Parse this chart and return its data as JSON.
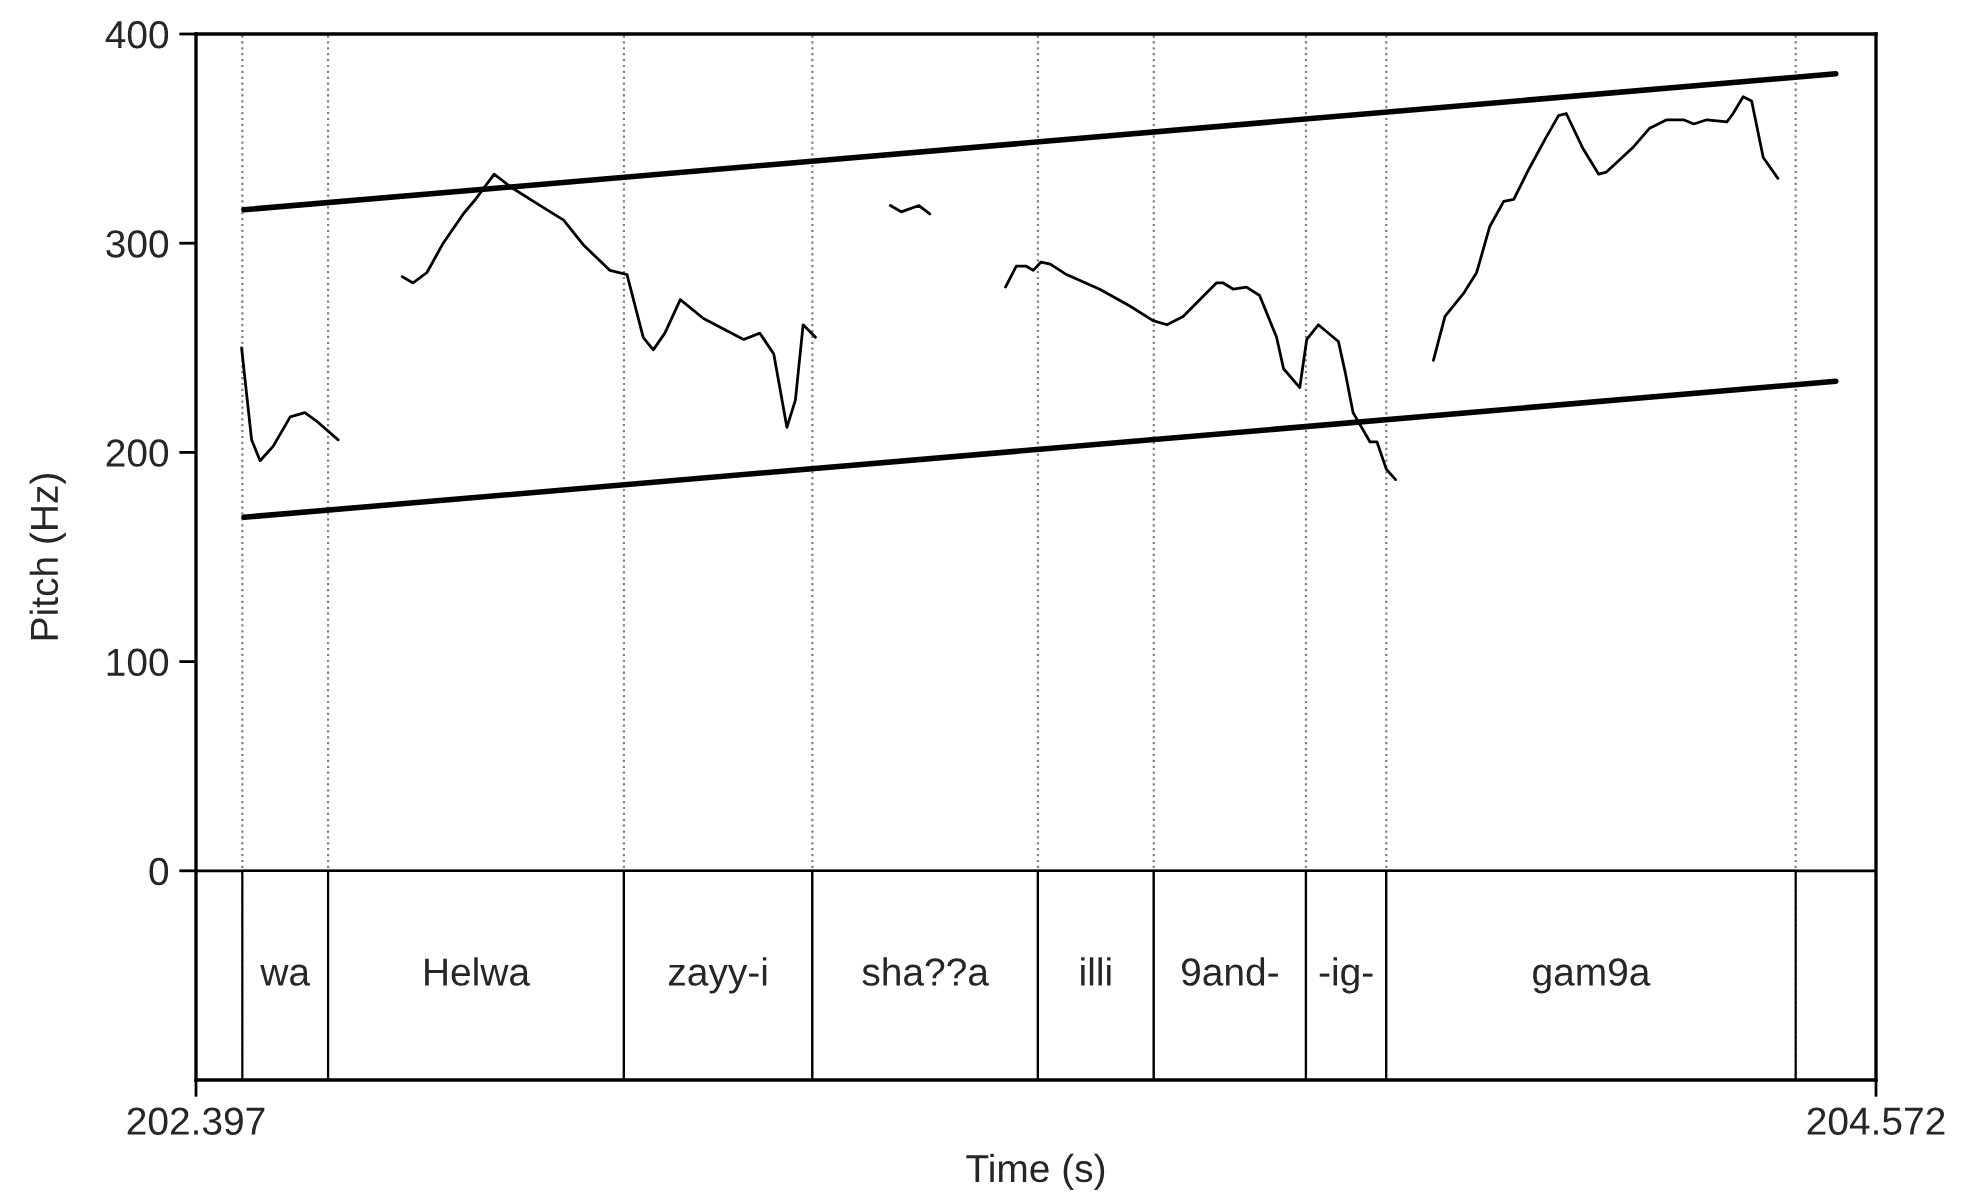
{
  "chart_data": {
    "type": "line",
    "xlabel": "Time (s)",
    "ylabel": "Pitch (Hz)",
    "xlim": [
      202.397,
      204.572
    ],
    "xticks": [
      202.397,
      204.572
    ],
    "ylim": [
      -100,
      400
    ],
    "yticks": [
      0,
      100,
      200,
      300,
      400
    ],
    "grid": false,
    "legend": false,
    "marker": "none",
    "line_style": "solid",
    "series": [
      {
        "color": "#000000",
        "x": [
          202.456,
          202.469,
          202.48,
          202.497,
          202.519,
          202.538,
          202.553,
          202.581,
          null,
          202.664,
          202.678,
          202.696,
          202.717,
          202.743,
          202.759,
          202.783,
          202.804,
          202.838,
          202.873,
          202.899,
          202.933,
          202.955,
          202.976,
          202.989,
          203.004,
          203.024,
          203.054,
          203.106,
          203.127,
          203.145,
          203.162,
          203.173,
          203.183,
          203.199,
          null,
          203.296,
          203.31,
          203.333,
          203.347,
          null,
          203.445,
          203.459,
          203.472,
          203.481,
          203.491,
          203.503,
          203.524,
          203.567,
          203.606,
          203.636,
          203.654,
          203.675,
          203.718,
          203.727,
          203.74,
          203.757,
          203.774,
          203.796,
          203.805,
          203.826,
          203.835,
          203.85,
          203.876,
          203.885,
          203.895,
          203.917,
          203.926,
          203.938,
          203.95,
          null,
          203.999,
          204.014,
          204.038,
          204.055,
          204.072,
          204.09,
          204.103,
          204.122,
          204.144,
          204.161,
          204.171,
          204.193,
          204.213,
          204.223,
          204.258,
          204.279,
          204.301,
          204.323,
          204.336,
          204.353,
          204.379,
          204.387,
          204.4,
          204.411,
          204.426,
          204.445
        ],
        "values": [
          250,
          206,
          196,
          203,
          217,
          219,
          215,
          206,
          null,
          284,
          281,
          286,
          300,
          314,
          321,
          333,
          327,
          319,
          311,
          299,
          287,
          285,
          255,
          249,
          257,
          273,
          264,
          254,
          257,
          247,
          212,
          225,
          261,
          255,
          null,
          318,
          315,
          318,
          314,
          null,
          279,
          289,
          289,
          287,
          291,
          290,
          285,
          278,
          270,
          263,
          261,
          265,
          281,
          281,
          278,
          279,
          275,
          255,
          240,
          231,
          254,
          261,
          253,
          238,
          219,
          205,
          205,
          192,
          187,
          null,
          244,
          265,
          276,
          286,
          308,
          320,
          321,
          335,
          350,
          361,
          362,
          345,
          333,
          334,
          346,
          355,
          359,
          359,
          357,
          359,
          358,
          362,
          370,
          368,
          341,
          331
        ]
      },
      {
        "color": "#000000",
        "x": [
          202.459,
          204.52
        ],
        "values": [
          316,
          381
        ]
      },
      {
        "color": "#000000",
        "x": [
          202.459,
          204.52
        ],
        "values": [
          169,
          234
        ]
      }
    ],
    "ref_lines": [
      {
        "axis": "y",
        "value": 0,
        "color": "#000000",
        "line_style": "solid"
      },
      {
        "axis": "x",
        "value": 202.457,
        "color": "#808080",
        "line_style": "dotted"
      },
      {
        "axis": "x",
        "value": 202.568,
        "color": "#808080",
        "line_style": "dotted"
      },
      {
        "axis": "x",
        "value": 202.951,
        "color": "#808080",
        "line_style": "dotted"
      },
      {
        "axis": "x",
        "value": 203.195,
        "color": "#808080",
        "line_style": "dotted"
      },
      {
        "axis": "x",
        "value": 203.487,
        "color": "#808080",
        "line_style": "dotted"
      },
      {
        "axis": "x",
        "value": 203.637,
        "color": "#808080",
        "line_style": "dotted"
      },
      {
        "axis": "x",
        "value": 203.834,
        "color": "#808080",
        "line_style": "dotted"
      },
      {
        "axis": "x",
        "value": 203.938,
        "color": "#808080",
        "line_style": "dotted"
      },
      {
        "axis": "x",
        "value": 204.468,
        "color": "#808080",
        "line_style": "dotted"
      }
    ],
    "bands": [
      {
        "axis": "x",
        "from": 202.457,
        "to": 202.568,
        "label": "wa"
      },
      {
        "axis": "x",
        "from": 202.568,
        "to": 202.951,
        "label": "Helwa"
      },
      {
        "axis": "x",
        "from": 202.951,
        "to": 203.195,
        "label": "zayy-i"
      },
      {
        "axis": "x",
        "from": 203.195,
        "to": 203.487,
        "label": "sha??a"
      },
      {
        "axis": "x",
        "from": 203.487,
        "to": 203.637,
        "label": "illi"
      },
      {
        "axis": "x",
        "from": 203.637,
        "to": 203.834,
        "label": "9and-"
      },
      {
        "axis": "x",
        "from": 203.834,
        "to": 203.938,
        "label": "-ig-"
      },
      {
        "axis": "x",
        "from": 203.938,
        "to": 204.468,
        "label": "gam9a"
      }
    ]
  }
}
